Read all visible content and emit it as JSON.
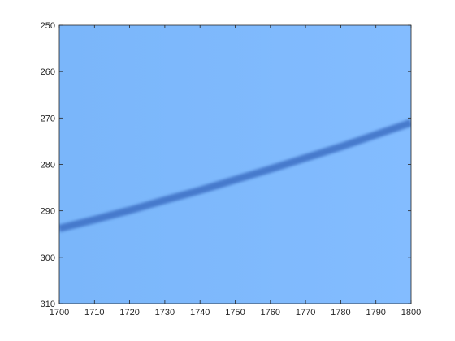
{
  "chart_data": {
    "type": "heatmap",
    "title": "",
    "xlabel": "",
    "ylabel": "",
    "xlim": [
      1700,
      1800
    ],
    "ylim": [
      250,
      310
    ],
    "y_direction": "reversed",
    "x_ticks": [
      1700,
      1710,
      1720,
      1730,
      1740,
      1750,
      1760,
      1770,
      1780,
      1790,
      1800
    ],
    "y_ticks": [
      250,
      260,
      270,
      280,
      290,
      300,
      310
    ],
    "grid": false,
    "legend": "none",
    "colors": {
      "background_left": "#7ab6fa",
      "background_right": "#83bcff",
      "band": "#3d6fc4",
      "axis": "#262626"
    },
    "band": {
      "description_points": [
        {
          "x": 1700,
          "y": 293.8
        },
        {
          "x": 1710,
          "y": 291.9
        },
        {
          "x": 1720,
          "y": 289.9
        },
        {
          "x": 1730,
          "y": 287.7
        },
        {
          "x": 1740,
          "y": 285.6
        },
        {
          "x": 1750,
          "y": 283.3
        },
        {
          "x": 1760,
          "y": 281.0
        },
        {
          "x": 1770,
          "y": 278.6
        },
        {
          "x": 1780,
          "y": 276.2
        },
        {
          "x": 1790,
          "y": 273.6
        },
        {
          "x": 1800,
          "y": 271.0
        }
      ],
      "width_data_units": 1.6
    }
  }
}
